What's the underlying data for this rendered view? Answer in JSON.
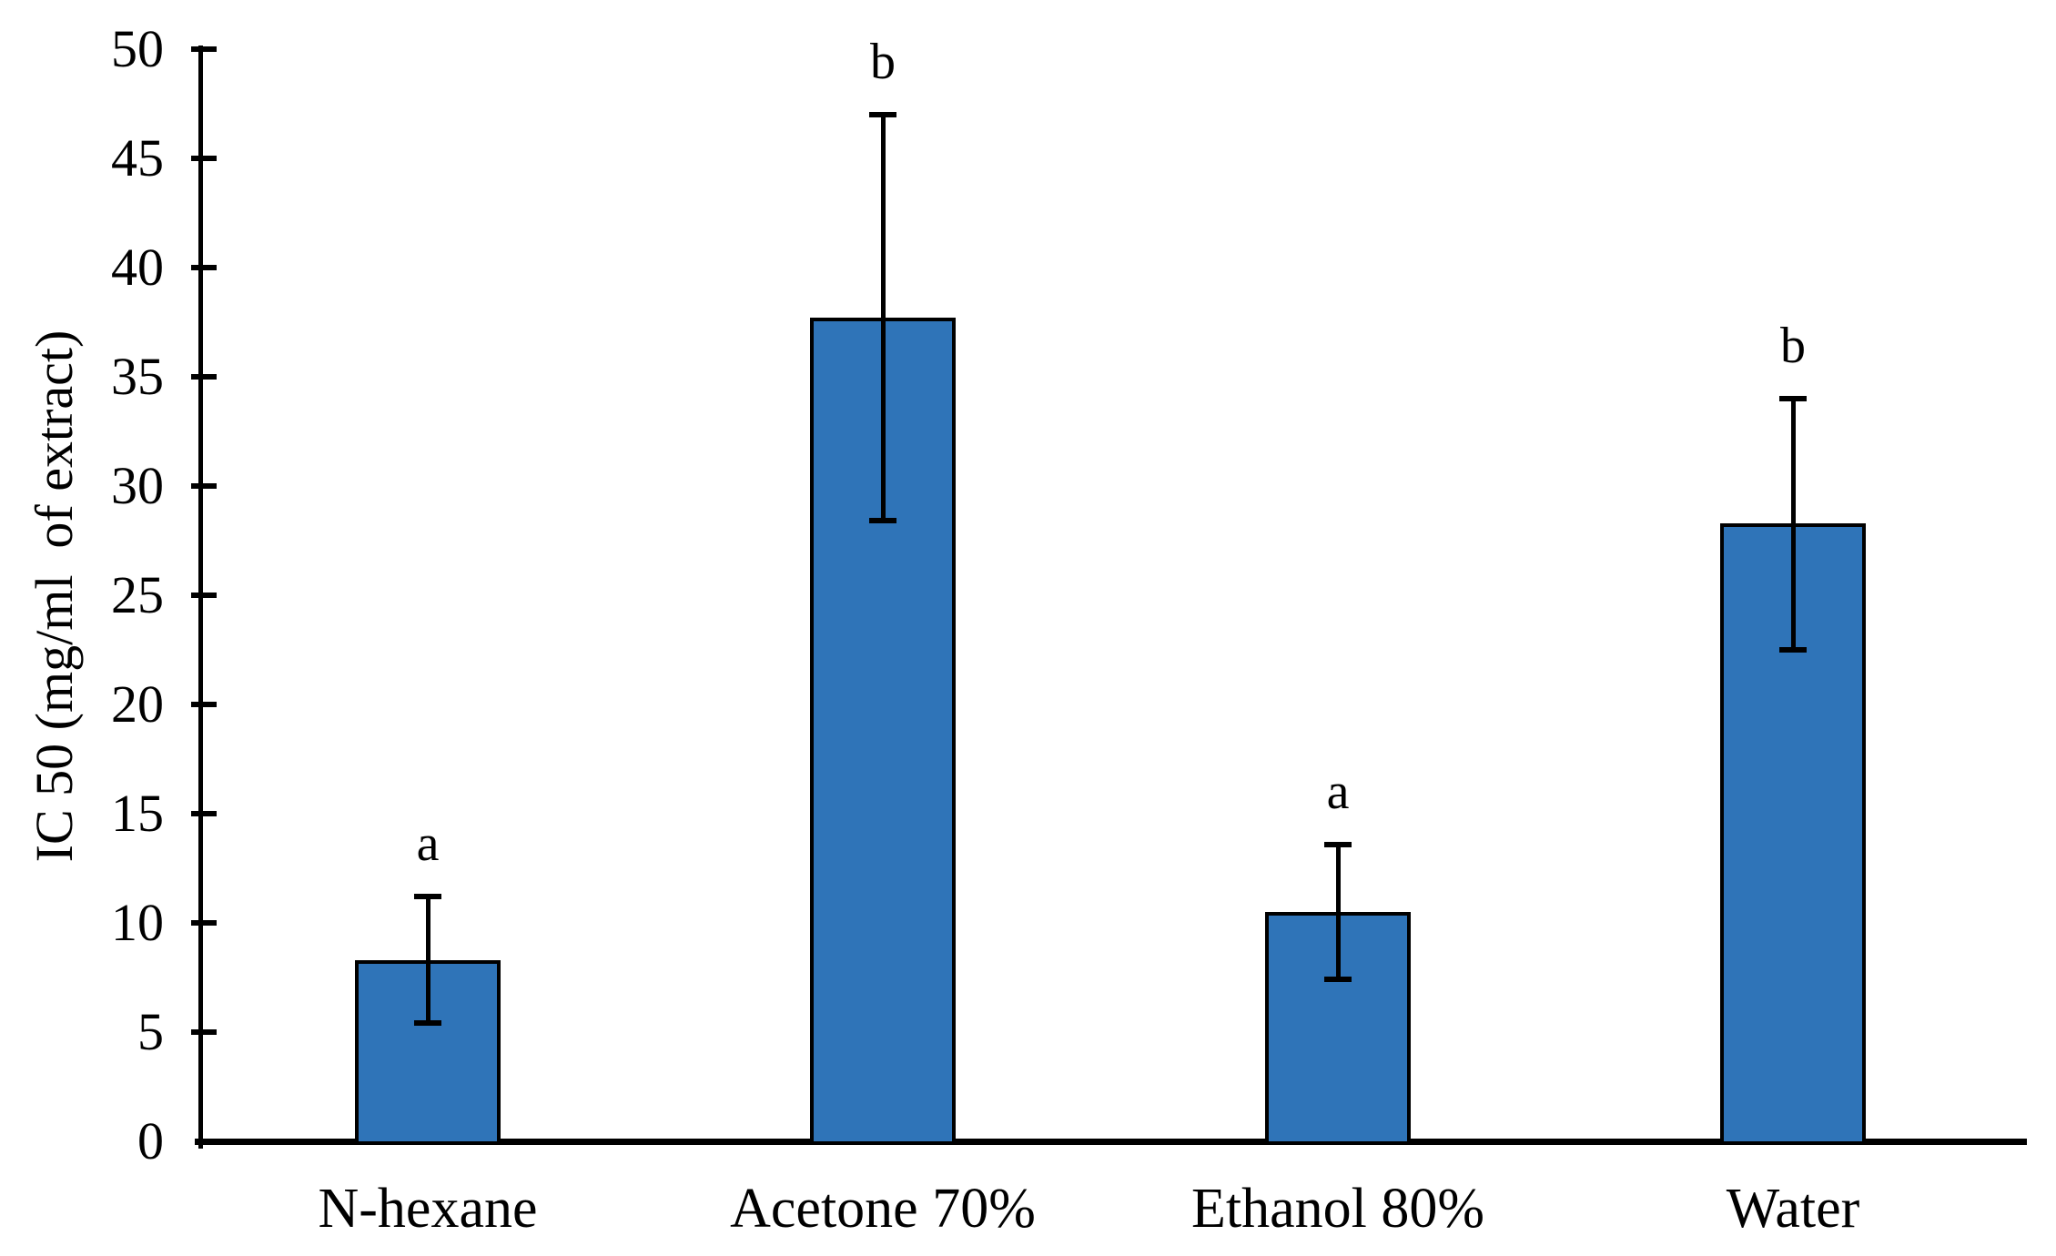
{
  "chart_data": {
    "type": "bar",
    "title": "",
    "categories": [
      "N-hexane",
      "Acetone 70%",
      "Ethanol 80%",
      "Water"
    ],
    "values": [
      8.3,
      37.7,
      10.5,
      28.3
    ],
    "error_upper": [
      11.2,
      47.0,
      13.6,
      34.0
    ],
    "error_lower": [
      5.4,
      28.4,
      7.4,
      22.5
    ],
    "significance_letters": [
      "a",
      "b",
      "a",
      "b"
    ],
    "xlabel": "",
    "ylabel": "IC 50 (mg/ml  of extract)",
    "ylim": [
      0,
      50
    ],
    "ytick_step": 5,
    "yticks": [
      0,
      5,
      10,
      15,
      20,
      25,
      30,
      35,
      40,
      45,
      50
    ],
    "grid": false,
    "legend": null,
    "bar_color": "#2F74B8",
    "bar_border_color": "#000000",
    "axis_color": "#000000"
  }
}
